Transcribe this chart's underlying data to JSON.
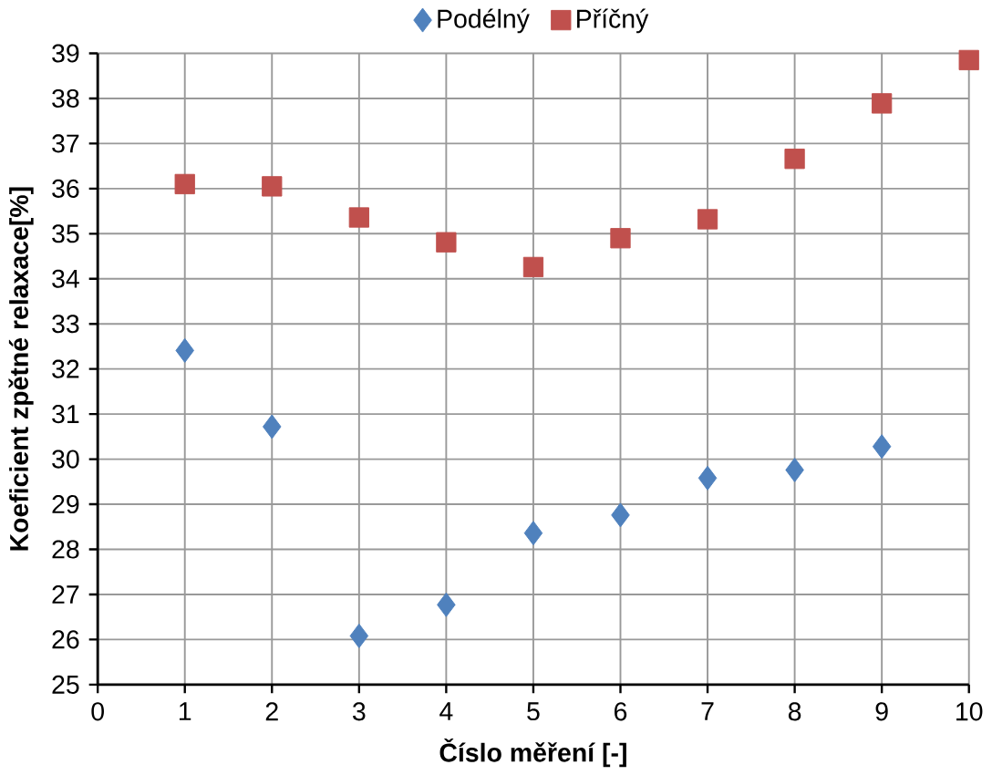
{
  "chart_data": {
    "type": "scatter",
    "xlabel": "Číslo měření [-]",
    "ylabel": "Koeficient zpětné relaxace[%]",
    "xlim": [
      0,
      10
    ],
    "xticks": [
      0,
      1,
      2,
      3,
      4,
      5,
      6,
      7,
      8,
      9,
      10
    ],
    "ylim": [
      25,
      39
    ],
    "yticks": [
      25,
      26,
      27,
      28,
      29,
      30,
      31,
      32,
      33,
      34,
      35,
      36,
      37,
      38,
      39
    ],
    "grid": true,
    "legend": "top",
    "series": [
      {
        "name": "Podélný",
        "color": "#4f81bd",
        "marker": "diamond",
        "x": [
          1,
          2,
          3,
          4,
          5,
          6,
          7,
          8,
          9
        ],
        "values": [
          32.41,
          30.72,
          26.08,
          26.77,
          28.36,
          28.76,
          29.58,
          29.76,
          30.28
        ]
      },
      {
        "name": "Příčný",
        "color": "#c0504d",
        "marker": "square",
        "x": [
          1,
          2,
          3,
          4,
          5,
          6,
          7,
          8,
          9,
          10
        ],
        "values": [
          36.1,
          36.05,
          35.36,
          34.81,
          34.26,
          34.9,
          35.32,
          36.66,
          37.89,
          38.85
        ]
      }
    ]
  }
}
